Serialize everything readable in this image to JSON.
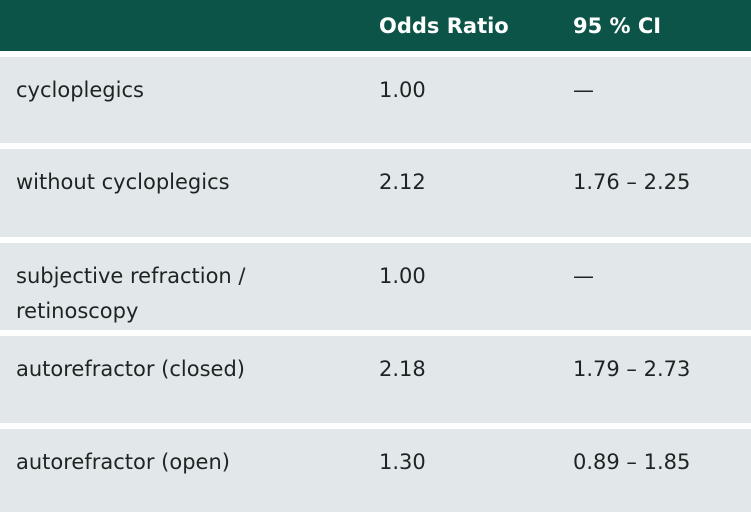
{
  "header": {
    "col1": "",
    "col2": "Odds Ratio",
    "col3": "95 % CI"
  },
  "rows": [
    {
      "label": "cycloplegics",
      "or": "1.00",
      "ci": "—"
    },
    {
      "label": "without cycloplegics",
      "or": "2.12",
      "ci": "1.76 – 2.25"
    },
    {
      "label": "subjective refraction / retinoscopy",
      "or": "1.00",
      "ci": "—"
    },
    {
      "label": "autorefractor (closed)",
      "or": "2.18",
      "ci": "1.79 – 2.73"
    },
    {
      "label": "autorefractor (open)",
      "or": "1.30",
      "ci": "0.89 – 1.85"
    }
  ],
  "colors": {
    "header_bg": "#0b5447",
    "row_bg": "#e2e8e9"
  }
}
